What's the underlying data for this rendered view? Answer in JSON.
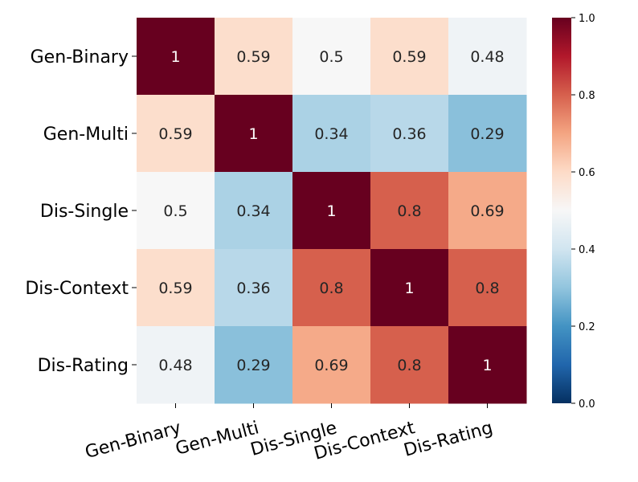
{
  "chart_data": {
    "type": "heatmap",
    "title": "",
    "xlabel": "",
    "ylabel": "",
    "rows": [
      "Gen-Binary",
      "Gen-Multi",
      "Dis-Single",
      "Dis-Context",
      "Dis-Rating"
    ],
    "columns": [
      "Gen-Binary",
      "Gen-Multi",
      "Dis-Single",
      "Dis-Context",
      "Dis-Rating"
    ],
    "values": [
      [
        1,
        0.59,
        0.5,
        0.59,
        0.48
      ],
      [
        0.59,
        1,
        0.34,
        0.36,
        0.29
      ],
      [
        0.5,
        0.34,
        1,
        0.8,
        0.69
      ],
      [
        0.59,
        0.36,
        0.8,
        1,
        0.8
      ],
      [
        0.48,
        0.29,
        0.69,
        0.8,
        1
      ]
    ],
    "labels": [
      [
        "1",
        "0.59",
        "0.5",
        "0.59",
        "0.48"
      ],
      [
        "0.59",
        "1",
        "0.34",
        "0.36",
        "0.29"
      ],
      [
        "0.5",
        "0.34",
        "1",
        "0.8",
        "0.69"
      ],
      [
        "0.59",
        "0.36",
        "0.8",
        "1",
        "0.8"
      ],
      [
        "0.48",
        "0.29",
        "0.69",
        "0.8",
        "1"
      ]
    ],
    "colormap": "RdBu_r",
    "vmin": 0.0,
    "vmax": 1.0,
    "colorbar": {
      "ticks": [
        0.0,
        0.2,
        0.4,
        0.6,
        0.8,
        1.0
      ],
      "tick_labels": [
        "0.0",
        "0.2",
        "0.4",
        "0.6",
        "0.8",
        "1.0"
      ],
      "placement": "right"
    },
    "grid": false,
    "legend": "none"
  }
}
